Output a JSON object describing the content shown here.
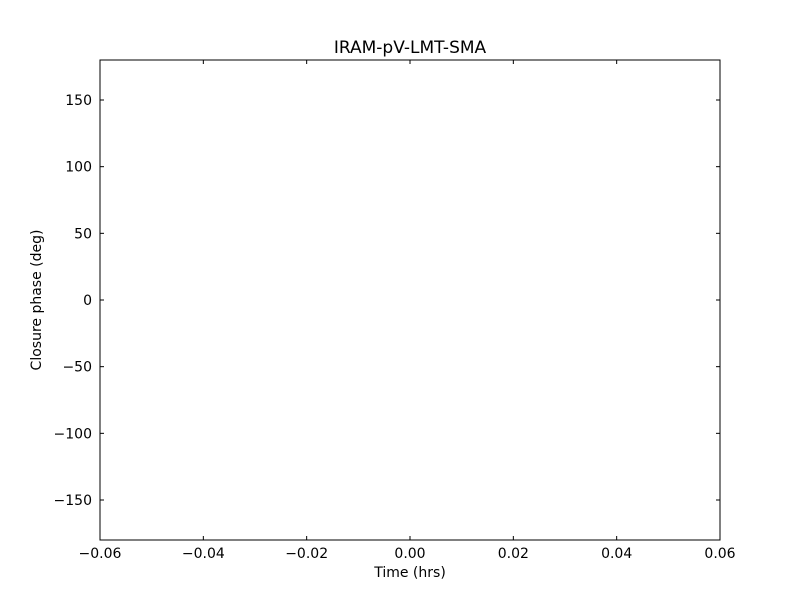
{
  "chart_data": {
    "type": "line",
    "title": "IRAM-pV-LMT-SMA",
    "xlabel": "Time (hrs)",
    "ylabel": "Closure phase (deg)",
    "xlim": [
      -0.06,
      0.06
    ],
    "ylim": [
      -180,
      180
    ],
    "xticks": [
      -0.06,
      -0.04,
      -0.02,
      0.0,
      0.02,
      0.04,
      0.06
    ],
    "xtick_labels": [
      "−0.06",
      "−0.04",
      "−0.02",
      "0.00",
      "0.02",
      "0.04",
      "0.06"
    ],
    "yticks": [
      -150,
      -100,
      -50,
      0,
      50,
      100,
      150
    ],
    "ytick_labels": [
      "−150",
      "−100",
      "−50",
      "0",
      "50",
      "100",
      "150"
    ],
    "grid": false,
    "series": []
  }
}
